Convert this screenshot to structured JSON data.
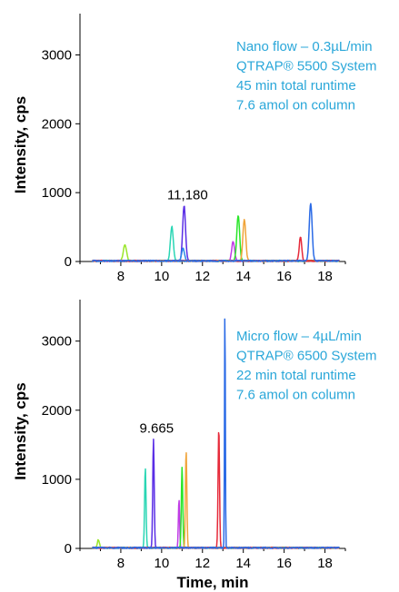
{
  "chart_data": [
    {
      "type": "line",
      "ylabel": "Intensity, cps",
      "xlabel": "",
      "xlim": [
        6,
        19
      ],
      "ylim": [
        0,
        3600
      ],
      "xticks": [
        8,
        10,
        12,
        14,
        16,
        18
      ],
      "yticks": [
        0,
        1000,
        2000,
        3000
      ],
      "annotation_color": "#2aa7d9",
      "annotation_lines": [
        "Nano flow – 0.3µL/min",
        "QTRAP® 5500 System",
        "45 min total runtime",
        "7.6 amol on column"
      ],
      "peak_label": {
        "text": "11,180",
        "x": 11.18,
        "y": 800
      },
      "series": [
        {
          "color": "#9ae62a",
          "peaks": [
            [
              8.2,
              230,
              0.08
            ]
          ]
        },
        {
          "color": "#2ad6b4",
          "peaks": [
            [
              10.5,
              500,
              0.07
            ]
          ]
        },
        {
          "color": "#5a2ee6",
          "peaks": [
            [
              11.1,
              800,
              0.07
            ]
          ]
        },
        {
          "color": "#2a8ae6",
          "peaks": [
            [
              11.05,
              180,
              0.07
            ]
          ]
        },
        {
          "color": "#c03ae6",
          "peaks": [
            [
              13.5,
              280,
              0.07
            ]
          ]
        },
        {
          "color": "#2ae62a",
          "peaks": [
            [
              13.75,
              660,
              0.07
            ]
          ]
        },
        {
          "color": "#f0a43a",
          "peaks": [
            [
              14.05,
              600,
              0.07
            ]
          ]
        },
        {
          "color": "#e62a3a",
          "peaks": [
            [
              16.8,
              350,
              0.06
            ]
          ]
        },
        {
          "color": "#2a6ae6",
          "peaks": [
            [
              17.3,
              840,
              0.07
            ]
          ]
        }
      ]
    },
    {
      "type": "line",
      "ylabel": "Intensity, cps",
      "xlabel": "Time, min",
      "xlim": [
        6,
        19
      ],
      "ylim": [
        0,
        3600
      ],
      "xticks": [
        8,
        10,
        12,
        14,
        16,
        18
      ],
      "yticks": [
        0,
        1000,
        2000,
        3000
      ],
      "annotation_color": "#2aa7d9",
      "annotation_lines": [
        "Micro flow – 4µL/min",
        "QTRAP® 6500 System",
        "22 min total runtime",
        "7.6 amol on column"
      ],
      "peak_label": {
        "text": "9.665",
        "x": 9.665,
        "y": 1570
      },
      "series": [
        {
          "color": "#9ae62a",
          "peaks": [
            [
              6.9,
              120,
              0.05
            ]
          ]
        },
        {
          "color": "#2ad6b4",
          "peaks": [
            [
              9.2,
              1160,
              0.035
            ]
          ]
        },
        {
          "color": "#5a2ee6",
          "peaks": [
            [
              9.6,
              1570,
              0.035
            ]
          ]
        },
        {
          "color": "#c03ae6",
          "peaks": [
            [
              10.85,
              700,
              0.03
            ]
          ]
        },
        {
          "color": "#2ae62a",
          "peaks": [
            [
              11.0,
              1160,
              0.035
            ]
          ]
        },
        {
          "color": "#f0a43a",
          "peaks": [
            [
              11.2,
              1400,
              0.035
            ]
          ]
        },
        {
          "color": "#e62a3a",
          "peaks": [
            [
              12.8,
              1730,
              0.035
            ]
          ]
        },
        {
          "color": "#2a6ae6",
          "peaks": [
            [
              13.1,
              3580,
              0.02
            ]
          ]
        }
      ]
    }
  ]
}
